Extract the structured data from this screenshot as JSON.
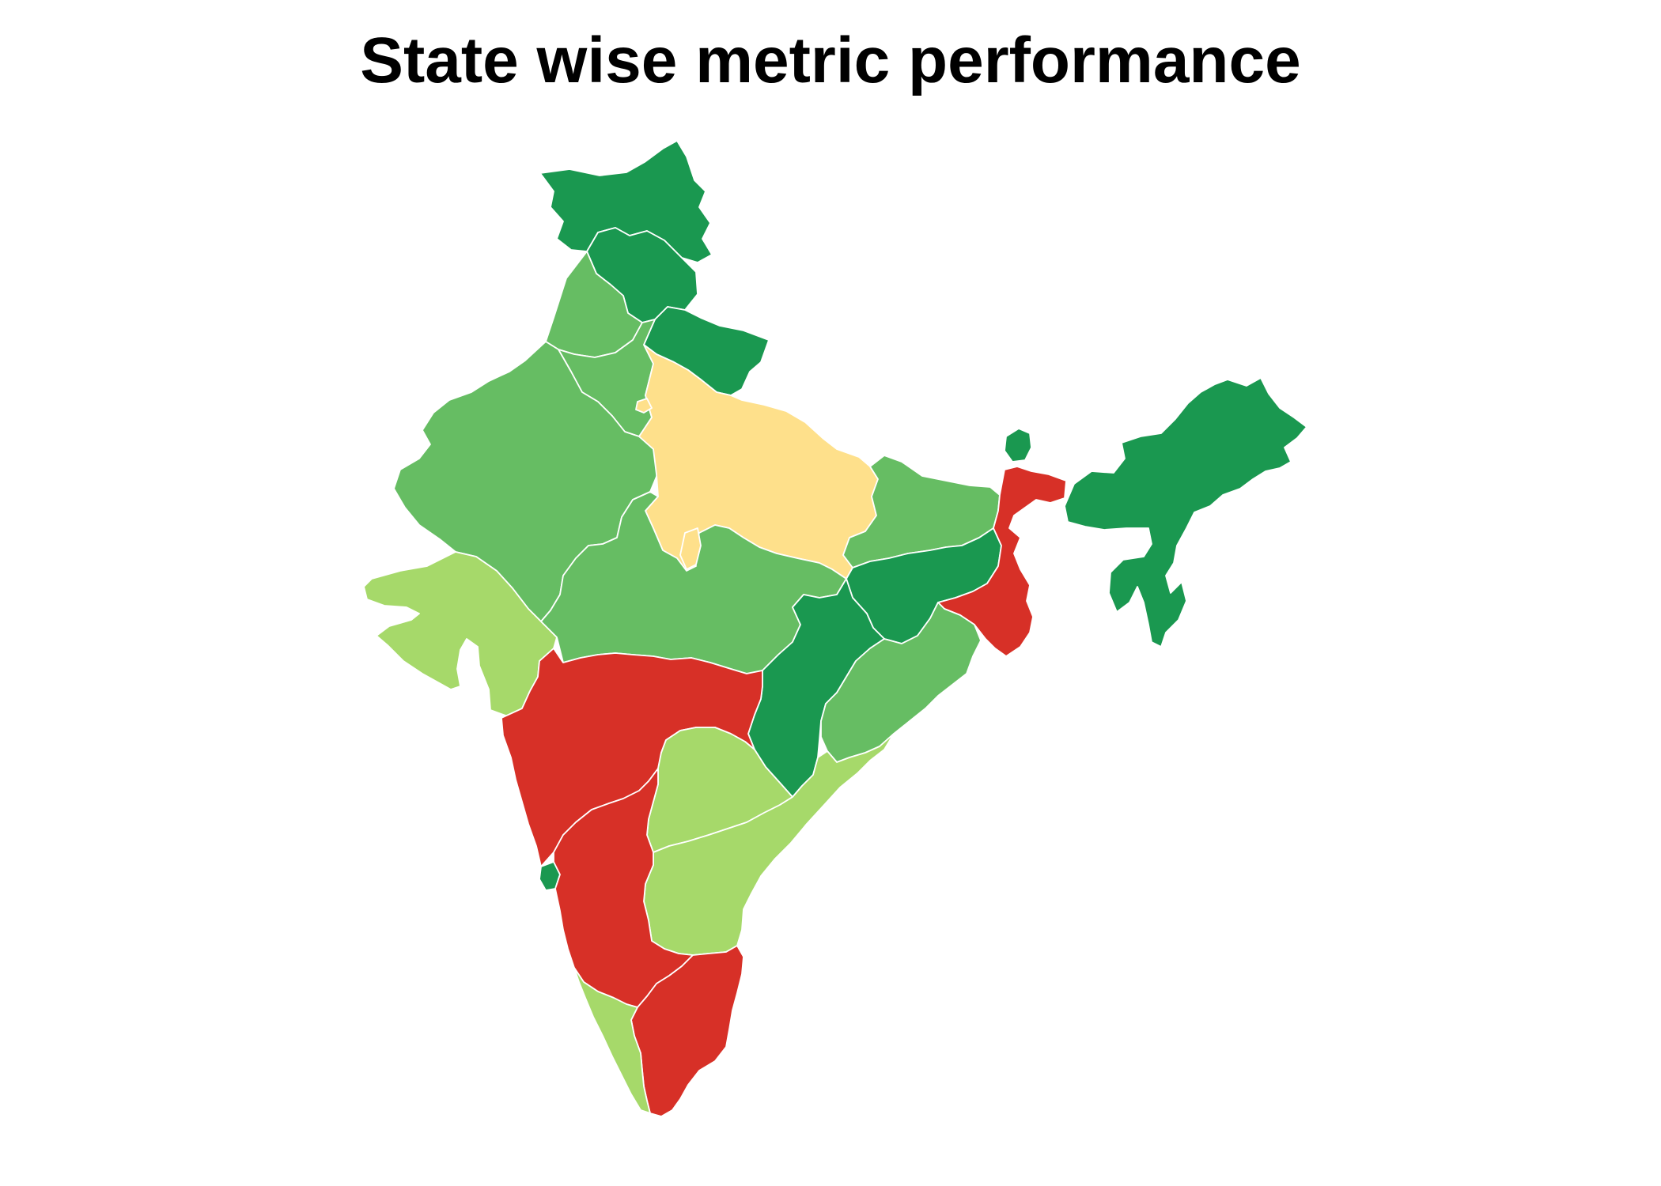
{
  "title": "State wise metric performance",
  "legend": "none",
  "palette": {
    "dark_green": "#1a9850",
    "medium_green": "#66bd63",
    "light_green": "#a6d96a",
    "pale_yellow": "#fee08b",
    "red": "#d73027"
  },
  "regions": [
    {
      "name": "Jammu and Kashmir",
      "tier": "dark_green"
    },
    {
      "name": "Himachal Pradesh",
      "tier": "dark_green"
    },
    {
      "name": "Uttarakhand",
      "tier": "dark_green"
    },
    {
      "name": "Punjab",
      "tier": "medium_green"
    },
    {
      "name": "Haryana",
      "tier": "medium_green"
    },
    {
      "name": "Rajasthan",
      "tier": "medium_green"
    },
    {
      "name": "Uttar Pradesh",
      "tier": "pale_yellow"
    },
    {
      "name": "Bihar",
      "tier": "medium_green"
    },
    {
      "name": "Sikkim",
      "tier": "dark_green"
    },
    {
      "name": "North-East states",
      "tier": "dark_green"
    },
    {
      "name": "Gujarat",
      "tier": "light_green"
    },
    {
      "name": "Madhya Pradesh",
      "tier": "medium_green"
    },
    {
      "name": "Jharkhand",
      "tier": "dark_green"
    },
    {
      "name": "West Bengal",
      "tier": "red"
    },
    {
      "name": "Chhattisgarh",
      "tier": "dark_green"
    },
    {
      "name": "Odisha",
      "tier": "medium_green"
    },
    {
      "name": "Maharashtra",
      "tier": "red"
    },
    {
      "name": "Telangana",
      "tier": "light_green"
    },
    {
      "name": "Andhra Pradesh",
      "tier": "light_green"
    },
    {
      "name": "Goa",
      "tier": "dark_green"
    },
    {
      "name": "Karnataka",
      "tier": "red"
    },
    {
      "name": "Tamil Nadu",
      "tier": "red"
    },
    {
      "name": "Kerala",
      "tier": "light_green"
    }
  ]
}
